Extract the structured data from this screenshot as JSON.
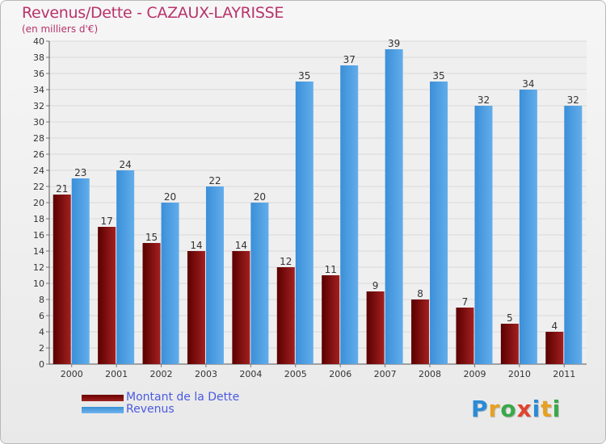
{
  "chart_data": {
    "type": "bar",
    "title": "Revenus/Dette - CAZAUX-LAYRISSE",
    "subtitle": "(en milliers d'€)",
    "categories": [
      "2000",
      "2001",
      "2002",
      "2003",
      "2004",
      "2005",
      "2006",
      "2007",
      "2008",
      "2009",
      "2010",
      "2011"
    ],
    "series": [
      {
        "name": "Montant de la Dette",
        "values": [
          21,
          17,
          15,
          14,
          14,
          12,
          11,
          9,
          8,
          7,
          5,
          4
        ],
        "color": "#7a0a0a"
      },
      {
        "name": "Revenus",
        "values": [
          23,
          24,
          20,
          22,
          20,
          35,
          37,
          39,
          35,
          32,
          34,
          32
        ],
        "color": "#4a9de0"
      }
    ],
    "ylim": [
      0,
      40
    ],
    "ytick_step": 2,
    "grid": true,
    "xlabel": "",
    "ylabel": ""
  },
  "legend": {
    "dette_label": "Montant de la Dette",
    "revenus_label": "Revenus"
  },
  "logo": {
    "letters": [
      "P",
      "r",
      "o",
      "x",
      "i",
      "t",
      "i"
    ]
  }
}
